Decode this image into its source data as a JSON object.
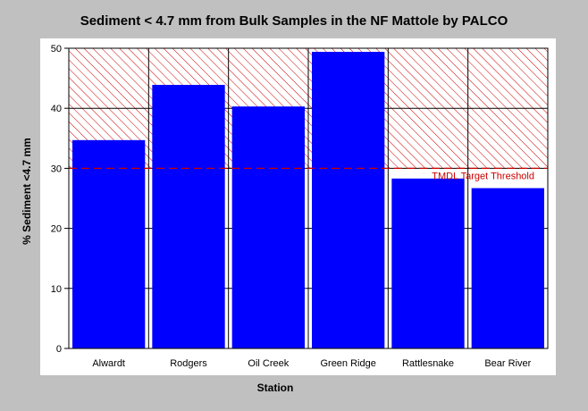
{
  "chart_data": {
    "type": "bar",
    "title": "Sediment < 4.7 mm from Bulk Samples in the NF Mattole by PALCO",
    "xlabel": "Station",
    "ylabel": "% Sediment <4.7 mm",
    "categories": [
      "Alwardt",
      "Rodgers",
      "Oil Creek",
      "Green Ridge",
      "Rattlesnake",
      "Bear River"
    ],
    "values": [
      34.7,
      43.9,
      40.3,
      49.4,
      28.3,
      26.7
    ],
    "ylim": [
      0,
      50
    ],
    "yticks": [
      0,
      10,
      20,
      30,
      40,
      50
    ],
    "grid": true,
    "threshold": {
      "value": 30,
      "label": "TMDL Target Threshold"
    },
    "colors": {
      "bar": "#0000ff",
      "threshold": "#cc0000",
      "hatch": "#cc0000",
      "plot_bg": "#ffffff",
      "panel_bg": "#c0c0c0"
    }
  }
}
